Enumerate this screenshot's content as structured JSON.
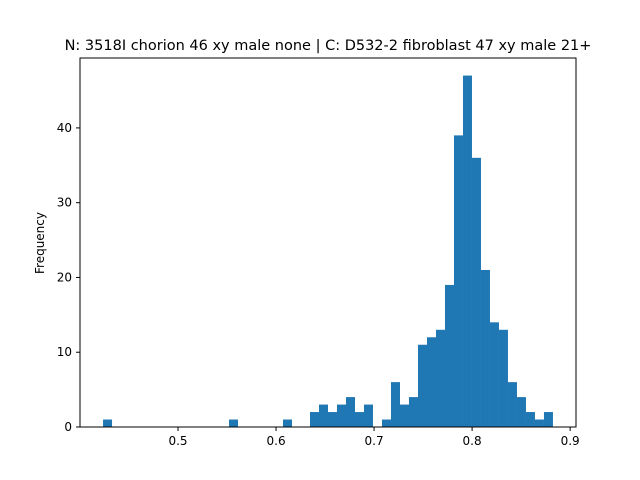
{
  "chart_data": {
    "type": "bar",
    "title": "N: 3518I chorion 46 xy male none | C: D532-2 fibroblast 47 xy male 21+",
    "xlabel": "",
    "ylabel": "Frequency",
    "bar_color": "#1f77b4",
    "xlim": [
      0.4,
      0.906
    ],
    "ylim": [
      0,
      49.35
    ],
    "grid": false,
    "legend": "none",
    "bin_start": 0.4235,
    "bin_width": 0.00918,
    "values": [
      1,
      0,
      0,
      0,
      0,
      0,
      0,
      0,
      0,
      0,
      0,
      0,
      0,
      0,
      1,
      0,
      0,
      0,
      0,
      0,
      1,
      0,
      0,
      2,
      3,
      2,
      3,
      4,
      2,
      3,
      0,
      1,
      6,
      3,
      4,
      11,
      12,
      13,
      19,
      39,
      47,
      36,
      21,
      14,
      13,
      6,
      4,
      2,
      1,
      2
    ],
    "x_ticks": [
      {
        "value": 0.5,
        "label": "0.5"
      },
      {
        "value": 0.6,
        "label": "0.6"
      },
      {
        "value": 0.7,
        "label": "0.7"
      },
      {
        "value": 0.8,
        "label": "0.8"
      },
      {
        "value": 0.9,
        "label": "0.9"
      }
    ],
    "y_ticks": [
      {
        "value": 0,
        "label": "0"
      },
      {
        "value": 10,
        "label": "10"
      },
      {
        "value": 20,
        "label": "20"
      },
      {
        "value": 30,
        "label": "30"
      },
      {
        "value": 40,
        "label": "40"
      }
    ]
  }
}
